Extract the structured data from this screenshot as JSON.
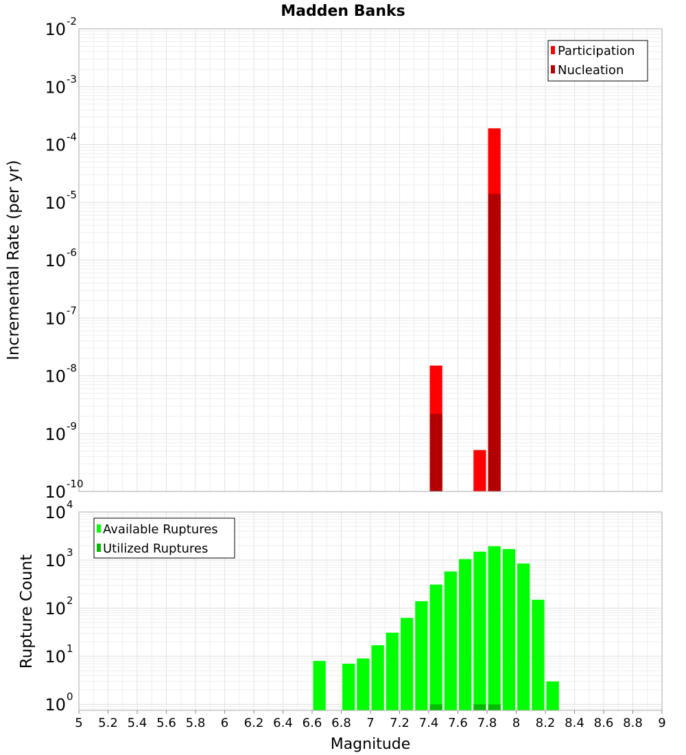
{
  "chart_data": [
    {
      "type": "bar",
      "title": "Madden Banks",
      "xlabel": "",
      "ylabel": "Incremental Rate (per yr)",
      "yscale": "log",
      "ylim": [
        1e-10,
        0.01
      ],
      "xlim": [
        5,
        9
      ],
      "grid": true,
      "legend": {
        "placement": "top-right",
        "entries": [
          "Participation",
          "Nucleation"
        ]
      },
      "yticks": [
        {
          "base": "10",
          "exp": "-10",
          "value": 1e-10
        },
        {
          "base": "10",
          "exp": "-9",
          "value": 1e-09
        },
        {
          "base": "10",
          "exp": "-8",
          "value": 1e-08
        },
        {
          "base": "10",
          "exp": "-7",
          "value": 1e-07
        },
        {
          "base": "10",
          "exp": "-6",
          "value": 1e-06
        },
        {
          "base": "10",
          "exp": "-5",
          "value": 1e-05
        },
        {
          "base": "10",
          "exp": "-4",
          "value": 0.0001
        },
        {
          "base": "10",
          "exp": "-3",
          "value": 0.001
        },
        {
          "base": "10",
          "exp": "-2",
          "value": 0.01
        }
      ],
      "bin_width": 0.1,
      "series": [
        {
          "name": "Participation",
          "color": "#ff0000",
          "x": [
            7.45,
            7.75,
            7.85
          ],
          "values": [
            1.5e-08,
            5.2e-10,
            0.00019
          ]
        },
        {
          "name": "Nucleation",
          "color": "#b30000",
          "x": [
            7.45,
            7.85
          ],
          "values": [
            2.2e-09,
            1.4e-05
          ]
        }
      ]
    },
    {
      "type": "bar",
      "xlabel": "Magnitude",
      "ylabel": "Rupture Count",
      "yscale": "log",
      "ylim": [
        0.75,
        10000
      ],
      "xlim": [
        5,
        9
      ],
      "grid": true,
      "legend": {
        "placement": "top-left",
        "entries": [
          "Available Ruptures",
          "Utilized Ruptures"
        ]
      },
      "yticks": [
        {
          "base": "10",
          "exp": "0",
          "value": 1
        },
        {
          "base": "10",
          "exp": "1",
          "value": 10
        },
        {
          "base": "10",
          "exp": "2",
          "value": 100
        },
        {
          "base": "10",
          "exp": "3",
          "value": 1000
        },
        {
          "base": "10",
          "exp": "4",
          "value": 10000
        }
      ],
      "xticks": [
        "5",
        "5.2",
        "5.4",
        "5.6",
        "5.8",
        "6",
        "6.2",
        "6.4",
        "6.6",
        "6.8",
        "7",
        "7.2",
        "7.4",
        "7.6",
        "7.8",
        "8",
        "8.2",
        "8.4",
        "8.6",
        "8.8",
        "9"
      ],
      "bin_width": 0.1,
      "series": [
        {
          "name": "Available Ruptures",
          "color": "#00ff00",
          "x": [
            6.65,
            6.85,
            6.95,
            7.05,
            7.15,
            7.25,
            7.35,
            7.45,
            7.55,
            7.65,
            7.75,
            7.85,
            7.95,
            8.05,
            8.15,
            8.25
          ],
          "values": [
            8,
            7,
            9,
            17,
            31,
            63,
            140,
            310,
            580,
            1050,
            1500,
            1950,
            1700,
            850,
            150,
            3
          ]
        },
        {
          "name": "Utilized Ruptures",
          "color": "#00bb00",
          "x": [
            7.45,
            7.75,
            7.85
          ],
          "values": [
            1,
            1,
            1
          ]
        }
      ]
    }
  ]
}
